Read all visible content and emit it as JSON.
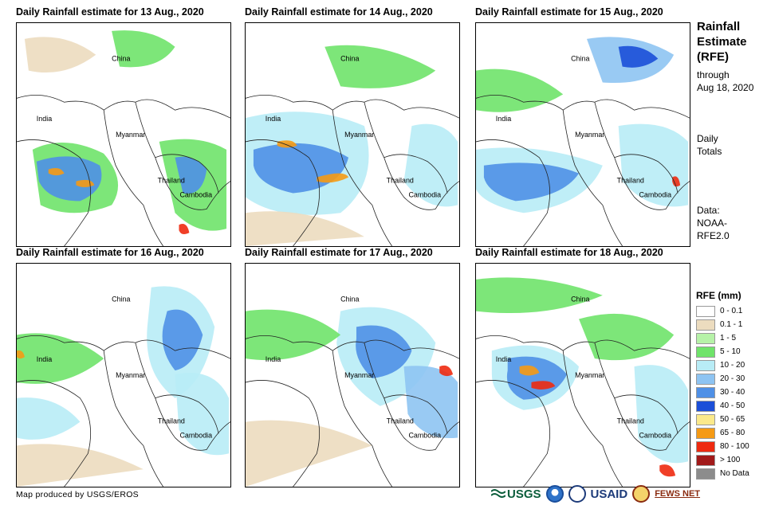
{
  "panels": [
    {
      "title": "Daily Rainfall estimate for 13 Aug., 2020"
    },
    {
      "title": "Daily Rainfall estimate for 14 Aug., 2020"
    },
    {
      "title": "Daily Rainfall estimate for 15 Aug., 2020"
    },
    {
      "title": "Daily Rainfall estimate for 16 Aug., 2020"
    },
    {
      "title": "Daily Rainfall estimate for 17 Aug., 2020"
    },
    {
      "title": "Daily Rainfall estimate for 18 Aug., 2020"
    }
  ],
  "map_labels": {
    "china": "China",
    "india": "India",
    "myanmar": "Myanmar",
    "thailand": "Thailand",
    "cambodia": "Cambodia"
  },
  "side": {
    "title_line1": "Rainfall",
    "title_line2": "Estimate",
    "title_line3": "(RFE)",
    "through": "through",
    "through_date": "Aug 18, 2020",
    "totals_line1": "Daily",
    "totals_line2": "Totals",
    "data_line1": "Data:",
    "data_line2": "NOAA-",
    "data_line3": "RFE2.0"
  },
  "legend": {
    "title": "RFE (mm)",
    "items": [
      {
        "label": "0 - 0.1",
        "color": "#ffffff"
      },
      {
        "label": "0.1 - 1",
        "color": "#ecdcbf"
      },
      {
        "label": "1 - 5",
        "color": "#b6f2a8"
      },
      {
        "label": "5 - 10",
        "color": "#6fe36a"
      },
      {
        "label": "10 - 20",
        "color": "#b8ecf6"
      },
      {
        "label": "20 - 30",
        "color": "#8ec4f2"
      },
      {
        "label": "30 - 40",
        "color": "#4f90e6"
      },
      {
        "label": "40 - 50",
        "color": "#1b4fd8"
      },
      {
        "label": "50 - 65",
        "color": "#fbe98a"
      },
      {
        "label": "65 - 80",
        "color": "#f59a14"
      },
      {
        "label": "80 - 100",
        "color": "#ee2a10"
      },
      {
        "label": "> 100",
        "color": "#a11a1a"
      },
      {
        "label": "No Data",
        "color": "#8c8c8c"
      }
    ]
  },
  "credit": "Map produced by USGS/EROS",
  "logos": {
    "usgs": "USGS",
    "usaid": "USAID",
    "fews": "FEWS NET"
  }
}
